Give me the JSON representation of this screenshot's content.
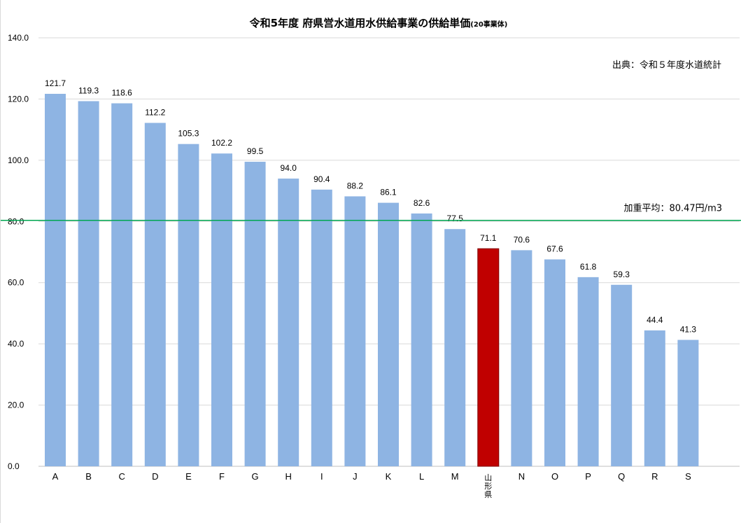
{
  "chart_data": {
    "type": "bar",
    "title": "令和5年度 府県営水道用水供給事業の供給単価",
    "subtitle": "(20事業体)",
    "source_note": "出典：令和５年度水道統計",
    "categories": [
      "A",
      "B",
      "C",
      "D",
      "E",
      "F",
      "G",
      "H",
      "I",
      "J",
      "K",
      "L",
      "M",
      "山形県",
      "N",
      "O",
      "P",
      "Q",
      "R",
      "S"
    ],
    "values": [
      121.7,
      119.3,
      118.6,
      112.2,
      105.3,
      102.2,
      99.5,
      94.0,
      90.4,
      88.2,
      86.1,
      82.6,
      77.5,
      71.1,
      70.6,
      67.6,
      61.8,
      59.3,
      44.4,
      41.3
    ],
    "data_labels": [
      "121.7",
      "119.3",
      "118.6",
      "112.2",
      "105.3",
      "102.2",
      "99.5",
      "94.0",
      "90.4",
      "88.2",
      "86.1",
      "82.6",
      "77.5",
      "71.1",
      "70.6",
      "67.6",
      "61.8",
      "59.3",
      "44.4",
      "41.3"
    ],
    "highlight_category": "山形県",
    "ylim": [
      0,
      140
    ],
    "yticks": [
      "0.0",
      "20.0",
      "40.0",
      "60.0",
      "80.0",
      "100.0",
      "120.0",
      "140.0"
    ],
    "xlabel": "",
    "ylabel": "",
    "grid": true,
    "reference_line": {
      "value": 80.47,
      "label": "加重平均：80.47円/m3",
      "color": "#00a651"
    },
    "colors": {
      "bar": "#8eb4e3",
      "highlight": "#c00000",
      "grid": "#d9d9d9",
      "axis": "#bfbfbf"
    }
  }
}
